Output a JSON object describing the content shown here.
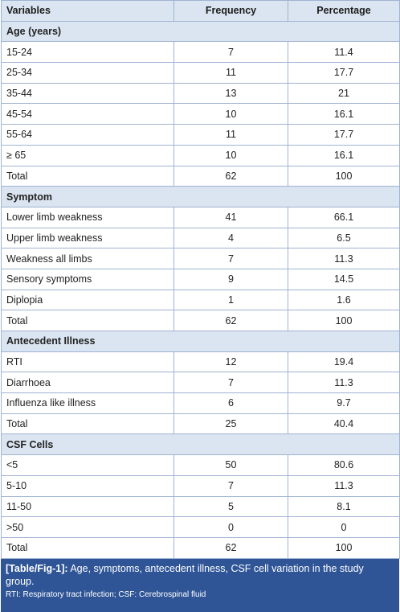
{
  "table": {
    "header": [
      "Variables",
      "Frequency",
      "Percentage"
    ],
    "sections": [
      {
        "title": "Age (years)",
        "rows": [
          [
            "15-24",
            7,
            11.4
          ],
          [
            "25-34",
            11,
            17.7
          ],
          [
            "35-44",
            13,
            21
          ],
          [
            "45-54",
            10,
            16.1
          ],
          [
            "55-64",
            11,
            17.7
          ],
          [
            "≥ 65",
            10,
            16.1
          ],
          [
            "Total",
            62,
            100
          ]
        ]
      },
      {
        "title": "Symptom",
        "rows": [
          [
            "Lower limb weakness",
            41,
            66.1
          ],
          [
            "Upper limb weakness",
            4,
            6.5
          ],
          [
            "Weakness all limbs",
            7,
            11.3
          ],
          [
            "Sensory symptoms",
            9,
            14.5
          ],
          [
            "Diplopia",
            1,
            1.6
          ],
          [
            "Total",
            62,
            100
          ]
        ]
      },
      {
        "title": "Antecedent Illness",
        "rows": [
          [
            "RTI",
            12,
            19.4
          ],
          [
            "Diarrhoea",
            7,
            11.3
          ],
          [
            "Influenza like illness",
            6,
            9.7
          ],
          [
            "Total",
            25,
            40.4
          ]
        ]
      },
      {
        "title": "CSF Cells",
        "rows": [
          [
            "<5",
            50,
            80.6
          ],
          [
            "5-10",
            7,
            11.3
          ],
          [
            "11-50",
            5,
            8.1
          ],
          [
            ">50",
            0,
            0
          ],
          [
            "Total",
            62,
            100
          ]
        ]
      }
    ]
  },
  "caption": {
    "label": "[Table/Fig-1]:",
    "text": "Age, symptoms, antecedent illness, CSF cell variation in the study group.",
    "note": "RTI: Respiratory tract infection; CSF: Cerebrospinal fluid"
  }
}
